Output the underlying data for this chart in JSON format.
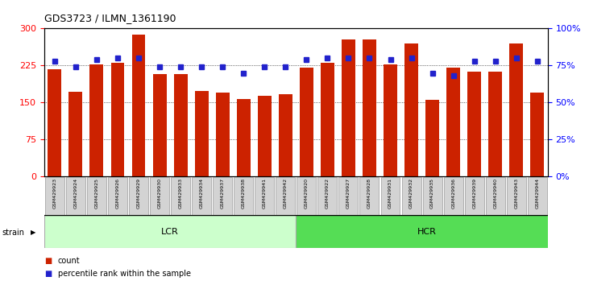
{
  "title": "GDS3723 / ILMN_1361190",
  "categories": [
    "GSM429923",
    "GSM429924",
    "GSM429925",
    "GSM429926",
    "GSM429929",
    "GSM429930",
    "GSM429933",
    "GSM429934",
    "GSM429937",
    "GSM429938",
    "GSM429941",
    "GSM429942",
    "GSM429920",
    "GSM429922",
    "GSM429927",
    "GSM429928",
    "GSM429931",
    "GSM429932",
    "GSM429935",
    "GSM429936",
    "GSM429939",
    "GSM429940",
    "GSM429943",
    "GSM429944"
  ],
  "counts": [
    218,
    172,
    228,
    230,
    287,
    208,
    207,
    173,
    170,
    157,
    163,
    167,
    220,
    230,
    278,
    278,
    228,
    270,
    155,
    220,
    213,
    213,
    270,
    170
  ],
  "percentile_ranks": [
    78,
    74,
    79,
    80,
    80,
    74,
    74,
    74,
    74,
    70,
    74,
    74,
    79,
    80,
    80,
    80,
    79,
    80,
    70,
    68,
    78,
    78,
    80,
    78
  ],
  "lcr_count": 12,
  "hcr_count": 12,
  "ylim_left": [
    0,
    300
  ],
  "ylim_right": [
    0,
    100
  ],
  "yticks_left": [
    0,
    75,
    150,
    225,
    300
  ],
  "yticks_right": [
    0,
    25,
    50,
    75,
    100
  ],
  "bar_color": "#cc2200",
  "dot_color": "#2222cc",
  "lcr_color": "#ccffcc",
  "hcr_color": "#55dd55",
  "bg_color": "#ffffff",
  "grid_color": "#000000"
}
